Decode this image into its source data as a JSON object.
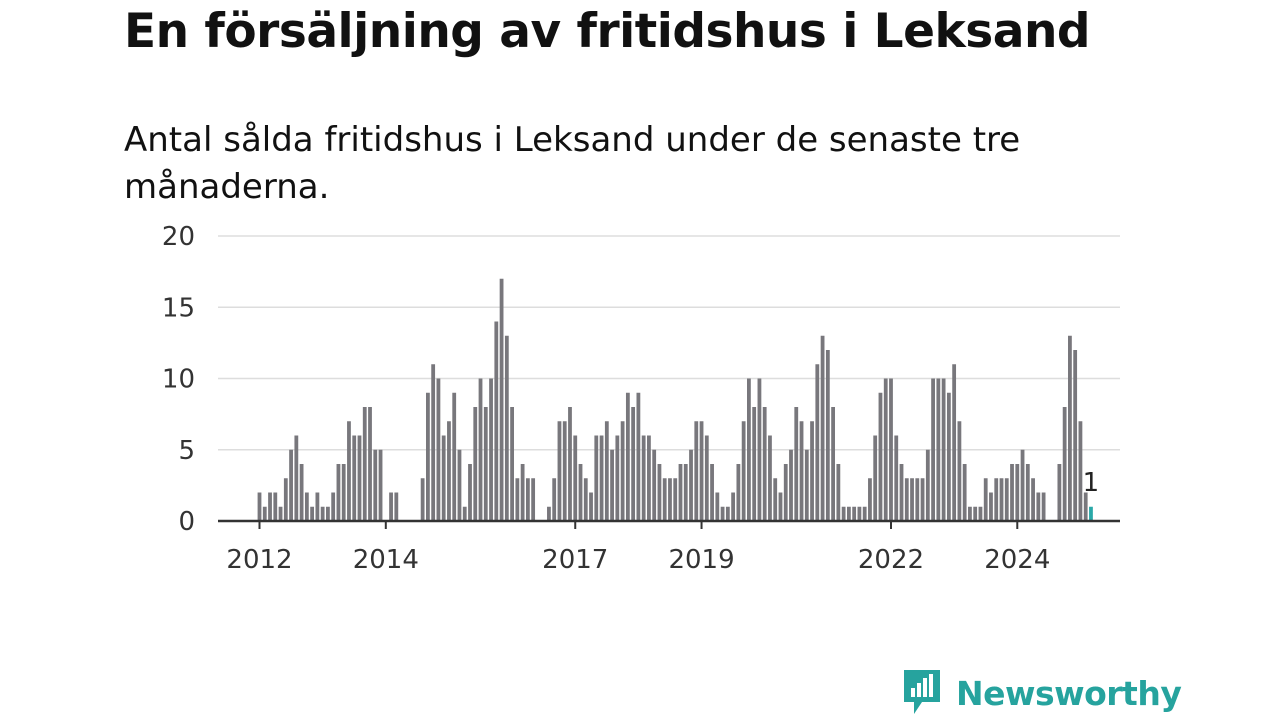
{
  "title": "En försäljning av fritidshus i Leksand",
  "subtitle": "Antal sålda fritidshus i Leksand under de senaste tre månaderna.",
  "brand": {
    "name": "Newsworthy",
    "icon": "newsworthy-logo-icon",
    "color": "#26a39e"
  },
  "colors": {
    "bar": "#78777c",
    "highlight": "#2aa8a8",
    "grid": "#dddddd",
    "axis": "#333333"
  },
  "chart_data": {
    "type": "bar",
    "title": "",
    "xlabel": "",
    "ylabel": "",
    "ylim": [
      0,
      20
    ],
    "yticks": [
      0,
      5,
      10,
      15,
      20
    ],
    "grid": true,
    "start_period": "2012-01",
    "x_tick_labels": [
      "2012",
      "2014",
      "2017",
      "2019",
      "2022",
      "2024"
    ],
    "highlight_label": "1",
    "values": [
      2,
      1,
      2,
      2,
      1,
      3,
      5,
      6,
      4,
      2,
      1,
      2,
      1,
      1,
      2,
      4,
      4,
      7,
      6,
      6,
      8,
      8,
      5,
      5,
      0,
      2,
      2,
      0,
      0,
      0,
      0,
      3,
      9,
      11,
      10,
      6,
      7,
      9,
      5,
      1,
      4,
      8,
      10,
      8,
      10,
      14,
      17,
      13,
      8,
      3,
      4,
      3,
      3,
      0,
      0,
      1,
      3,
      7,
      7,
      8,
      6,
      4,
      3,
      2,
      6,
      6,
      7,
      5,
      6,
      7,
      9,
      8,
      9,
      6,
      6,
      5,
      4,
      3,
      3,
      3,
      4,
      4,
      5,
      7,
      7,
      6,
      4,
      2,
      1,
      1,
      2,
      4,
      7,
      10,
      8,
      10,
      8,
      6,
      3,
      2,
      4,
      5,
      8,
      7,
      5,
      7,
      11,
      13,
      12,
      8,
      4,
      1,
      1,
      1,
      1,
      1,
      3,
      6,
      9,
      10,
      10,
      6,
      4,
      3,
      3,
      3,
      3,
      5,
      10,
      10,
      10,
      9,
      11,
      7,
      4,
      1,
      1,
      1,
      3,
      2,
      3,
      3,
      3,
      4,
      4,
      5,
      4,
      3,
      2,
      2,
      0,
      0,
      4,
      8,
      13,
      12,
      7,
      2,
      1
    ]
  }
}
